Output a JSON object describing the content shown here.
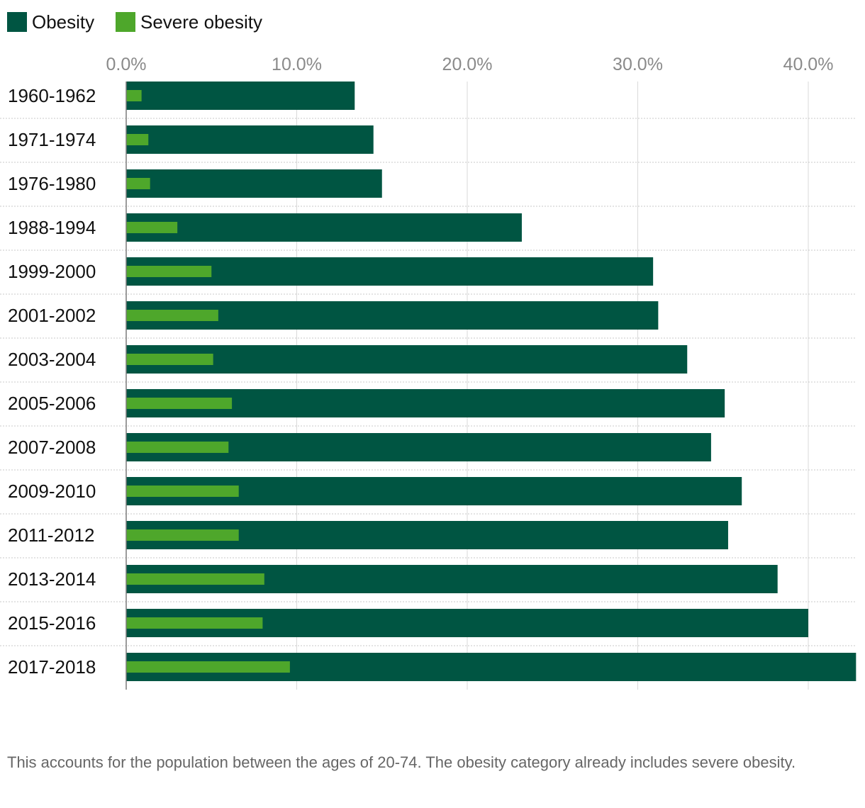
{
  "colors": {
    "obesity": "#005542",
    "severe_obesity": "#4ea72b",
    "gridline": "#d9d9d9",
    "row_separator": "#c8c8c8",
    "axis_line": "#7a7a7a"
  },
  "chart_data": {
    "type": "bar",
    "orientation": "horizontal",
    "categories": [
      "1960-1962",
      "1971-1974",
      "1976-1980",
      "1988-1994",
      "1999-2000",
      "2001-2002",
      "2003-2004",
      "2005-2006",
      "2007-2008",
      "2009-2010",
      "2011-2012",
      "2013-2014",
      "2015-2016",
      "2017-2018"
    ],
    "series": [
      {
        "name": "Obesity",
        "values": [
          13.4,
          14.5,
          15.0,
          23.2,
          30.9,
          31.2,
          32.9,
          35.1,
          34.3,
          36.1,
          35.3,
          38.2,
          40.0,
          42.8
        ]
      },
      {
        "name": "Severe obesity",
        "values": [
          0.9,
          1.3,
          1.4,
          3.0,
          5.0,
          5.4,
          5.1,
          6.2,
          6.0,
          6.6,
          6.6,
          8.1,
          8.0,
          9.6
        ]
      }
    ],
    "x_ticks": [
      "0.0%",
      "10.0%",
      "20.0%",
      "30.0%",
      "40.0%"
    ],
    "xlim": [
      0,
      42.8
    ],
    "grid": true,
    "legend_position": "top-left",
    "note": "This accounts for the population between the ages of 20-74. The obesity category already includes severe obesity."
  }
}
